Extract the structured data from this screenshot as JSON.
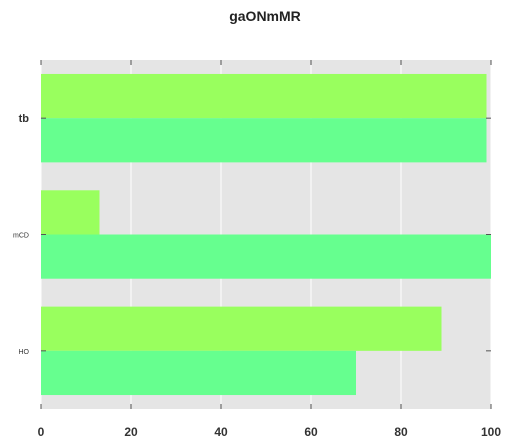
{
  "chart_data": {
    "type": "bar",
    "orientation": "horizontal",
    "title": "gaONmMR",
    "xlabel": "",
    "ylabel": "",
    "categories": [
      "HO",
      "mCD",
      "tb"
    ],
    "series": [
      {
        "values": [
          70,
          100,
          99
        ],
        "color": "#66ff8f"
      },
      {
        "values": [
          89,
          13,
          99
        ],
        "color": "#99ff5e"
      }
    ],
    "xlim": [
      0,
      100
    ],
    "xticks": [
      0,
      20,
      40,
      60,
      80,
      100
    ],
    "grid": true,
    "background": "#e5e5e5"
  }
}
